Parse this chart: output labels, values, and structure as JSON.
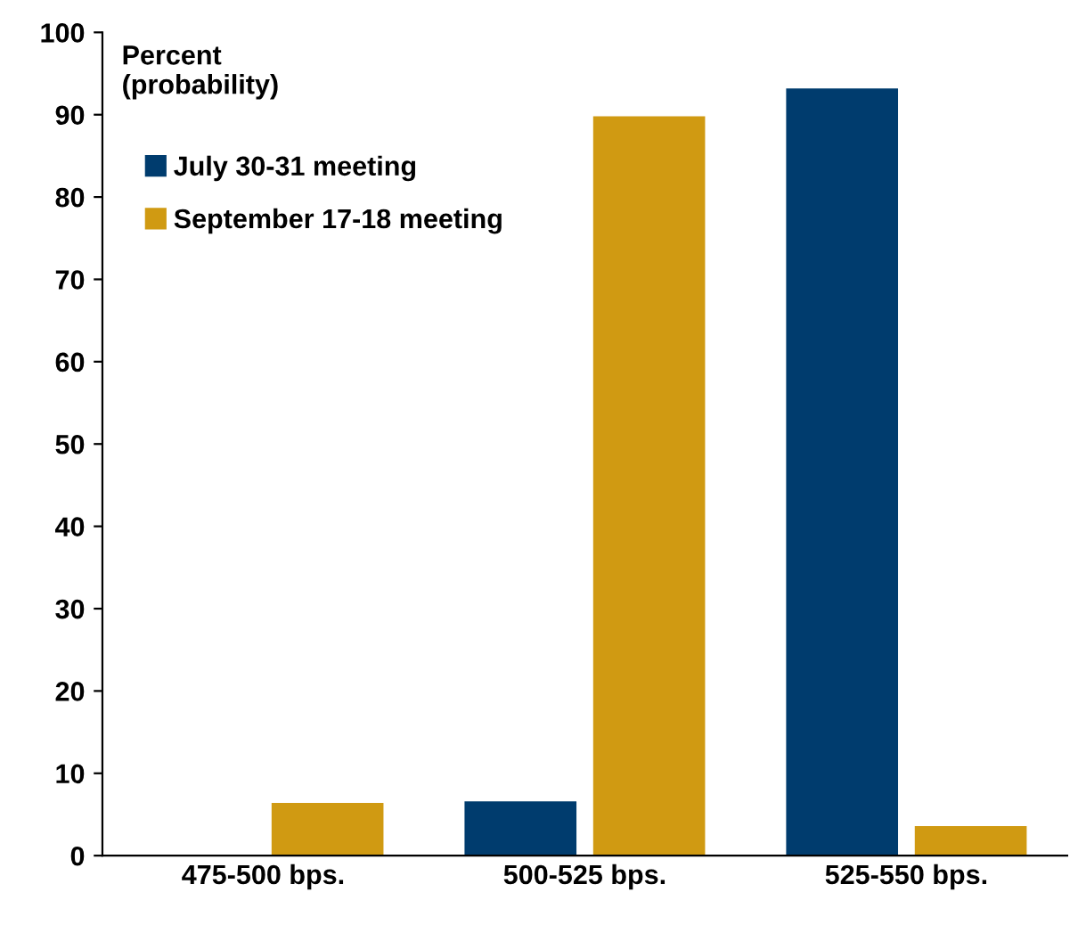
{
  "chart_data": {
    "type": "bar",
    "ylabel": "Percent\n(probability)",
    "categories": [
      "475-500 bps.",
      "500-525 bps.",
      "525-550 bps."
    ],
    "series": [
      {
        "name": "July 30-31 meeting",
        "color": "#003c6e",
        "values": [
          0,
          6.6,
          93.2
        ]
      },
      {
        "name": "September 17-18 meeting",
        "color": "#d09a12",
        "values": [
          6.4,
          89.8,
          3.6
        ]
      }
    ],
    "ylim": [
      0,
      100
    ],
    "yticks": [
      0,
      10,
      20,
      30,
      40,
      50,
      60,
      70,
      80,
      90,
      100
    ],
    "grid": false,
    "legend": "top left"
  }
}
